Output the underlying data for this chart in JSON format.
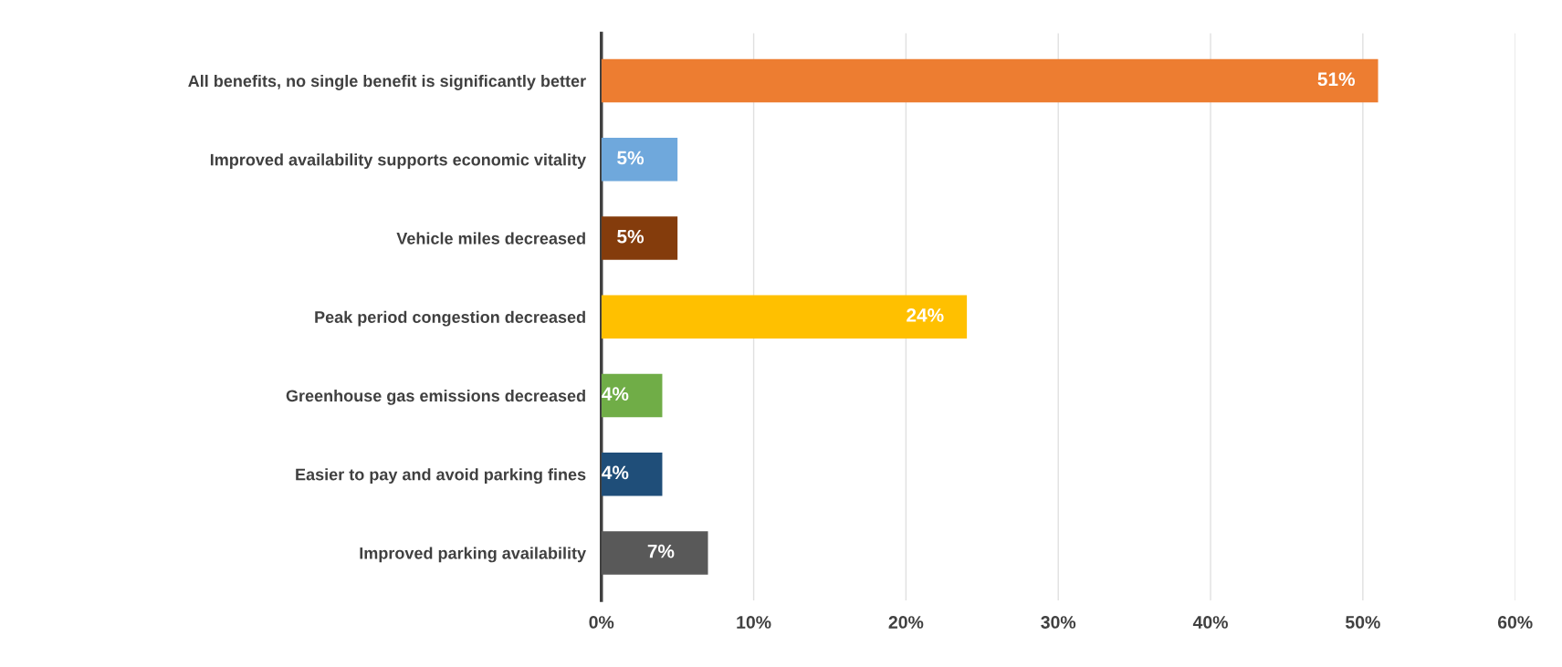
{
  "chart_data": {
    "type": "bar",
    "orientation": "horizontal",
    "categories": [
      "All benefits, no single benefit is significantly better",
      "Improved availability supports economic vitality",
      "Vehicle miles decreased",
      "Peak period congestion decreased",
      "Greenhouse gas emissions decreased",
      "Easier to pay and avoid parking fines",
      "Improved parking availability"
    ],
    "values": [
      51,
      5,
      5,
      24,
      4,
      4,
      7
    ],
    "colors": [
      "#ed7d31",
      "#6fa8dc",
      "#843c0c",
      "#ffc000",
      "#70ad47",
      "#1f4e79",
      "#595959"
    ],
    "xlim": [
      0,
      60
    ],
    "xticks": [
      {
        "value": 0,
        "label": "0%"
      },
      {
        "value": 10,
        "label": "10%"
      },
      {
        "value": 20,
        "label": "20%"
      },
      {
        "value": 30,
        "label": "30%"
      },
      {
        "value": 40,
        "label": "40%"
      },
      {
        "value": 50,
        "label": "50%"
      },
      {
        "value": 60,
        "label": "60%"
      }
    ],
    "value_labels": [
      "51%",
      "5%",
      "5%",
      "24%",
      "4%",
      "4%",
      "7%"
    ],
    "grid": "x"
  }
}
